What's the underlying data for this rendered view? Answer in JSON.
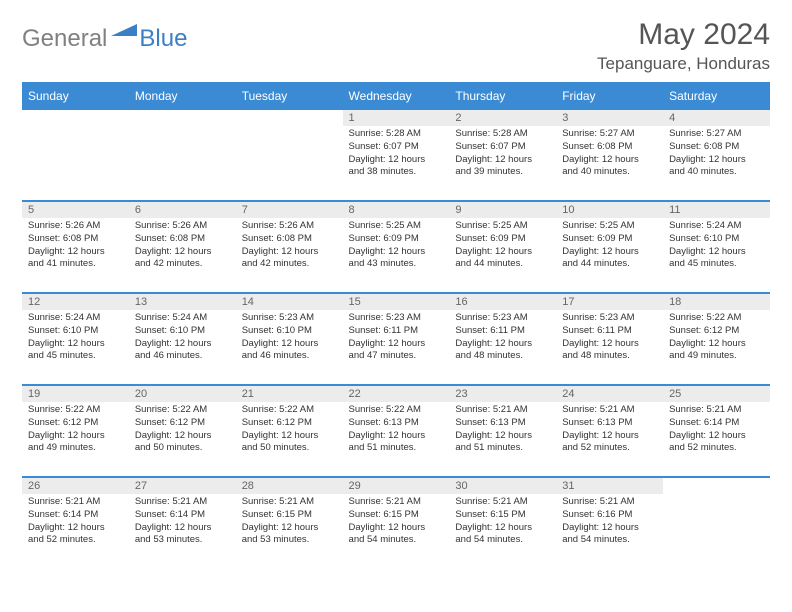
{
  "brand": {
    "part1": "General",
    "part2": "Blue"
  },
  "title": "May 2024",
  "location": "Tepanguare, Honduras",
  "colors": {
    "header_bg": "#3b8bd4",
    "border": "#3b8bd4",
    "daynum_bg": "#ececec",
    "text": "#333333",
    "brand_gray": "#808080",
    "brand_blue": "#3b7fc4"
  },
  "weekdays": [
    "Sunday",
    "Monday",
    "Tuesday",
    "Wednesday",
    "Thursday",
    "Friday",
    "Saturday"
  ],
  "weeks": [
    [
      null,
      null,
      null,
      {
        "n": "1",
        "sr": "5:28 AM",
        "ss": "6:07 PM",
        "dl": "12 hours and 38 minutes."
      },
      {
        "n": "2",
        "sr": "5:28 AM",
        "ss": "6:07 PM",
        "dl": "12 hours and 39 minutes."
      },
      {
        "n": "3",
        "sr": "5:27 AM",
        "ss": "6:08 PM",
        "dl": "12 hours and 40 minutes."
      },
      {
        "n": "4",
        "sr": "5:27 AM",
        "ss": "6:08 PM",
        "dl": "12 hours and 40 minutes."
      }
    ],
    [
      {
        "n": "5",
        "sr": "5:26 AM",
        "ss": "6:08 PM",
        "dl": "12 hours and 41 minutes."
      },
      {
        "n": "6",
        "sr": "5:26 AM",
        "ss": "6:08 PM",
        "dl": "12 hours and 42 minutes."
      },
      {
        "n": "7",
        "sr": "5:26 AM",
        "ss": "6:08 PM",
        "dl": "12 hours and 42 minutes."
      },
      {
        "n": "8",
        "sr": "5:25 AM",
        "ss": "6:09 PM",
        "dl": "12 hours and 43 minutes."
      },
      {
        "n": "9",
        "sr": "5:25 AM",
        "ss": "6:09 PM",
        "dl": "12 hours and 44 minutes."
      },
      {
        "n": "10",
        "sr": "5:25 AM",
        "ss": "6:09 PM",
        "dl": "12 hours and 44 minutes."
      },
      {
        "n": "11",
        "sr": "5:24 AM",
        "ss": "6:10 PM",
        "dl": "12 hours and 45 minutes."
      }
    ],
    [
      {
        "n": "12",
        "sr": "5:24 AM",
        "ss": "6:10 PM",
        "dl": "12 hours and 45 minutes."
      },
      {
        "n": "13",
        "sr": "5:24 AM",
        "ss": "6:10 PM",
        "dl": "12 hours and 46 minutes."
      },
      {
        "n": "14",
        "sr": "5:23 AM",
        "ss": "6:10 PM",
        "dl": "12 hours and 46 minutes."
      },
      {
        "n": "15",
        "sr": "5:23 AM",
        "ss": "6:11 PM",
        "dl": "12 hours and 47 minutes."
      },
      {
        "n": "16",
        "sr": "5:23 AM",
        "ss": "6:11 PM",
        "dl": "12 hours and 48 minutes."
      },
      {
        "n": "17",
        "sr": "5:23 AM",
        "ss": "6:11 PM",
        "dl": "12 hours and 48 minutes."
      },
      {
        "n": "18",
        "sr": "5:22 AM",
        "ss": "6:12 PM",
        "dl": "12 hours and 49 minutes."
      }
    ],
    [
      {
        "n": "19",
        "sr": "5:22 AM",
        "ss": "6:12 PM",
        "dl": "12 hours and 49 minutes."
      },
      {
        "n": "20",
        "sr": "5:22 AM",
        "ss": "6:12 PM",
        "dl": "12 hours and 50 minutes."
      },
      {
        "n": "21",
        "sr": "5:22 AM",
        "ss": "6:12 PM",
        "dl": "12 hours and 50 minutes."
      },
      {
        "n": "22",
        "sr": "5:22 AM",
        "ss": "6:13 PM",
        "dl": "12 hours and 51 minutes."
      },
      {
        "n": "23",
        "sr": "5:21 AM",
        "ss": "6:13 PM",
        "dl": "12 hours and 51 minutes."
      },
      {
        "n": "24",
        "sr": "5:21 AM",
        "ss": "6:13 PM",
        "dl": "12 hours and 52 minutes."
      },
      {
        "n": "25",
        "sr": "5:21 AM",
        "ss": "6:14 PM",
        "dl": "12 hours and 52 minutes."
      }
    ],
    [
      {
        "n": "26",
        "sr": "5:21 AM",
        "ss": "6:14 PM",
        "dl": "12 hours and 52 minutes."
      },
      {
        "n": "27",
        "sr": "5:21 AM",
        "ss": "6:14 PM",
        "dl": "12 hours and 53 minutes."
      },
      {
        "n": "28",
        "sr": "5:21 AM",
        "ss": "6:15 PM",
        "dl": "12 hours and 53 minutes."
      },
      {
        "n": "29",
        "sr": "5:21 AM",
        "ss": "6:15 PM",
        "dl": "12 hours and 54 minutes."
      },
      {
        "n": "30",
        "sr": "5:21 AM",
        "ss": "6:15 PM",
        "dl": "12 hours and 54 minutes."
      },
      {
        "n": "31",
        "sr": "5:21 AM",
        "ss": "6:16 PM",
        "dl": "12 hours and 54 minutes."
      },
      null
    ]
  ],
  "labels": {
    "sunrise": "Sunrise:",
    "sunset": "Sunset:",
    "daylight": "Daylight:"
  }
}
